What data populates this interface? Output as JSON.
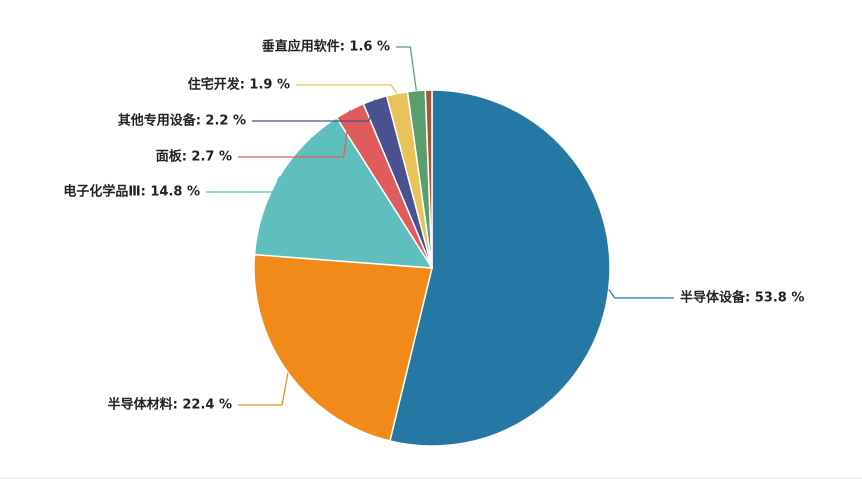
{
  "chart_data": {
    "type": "pie",
    "value_labels": [
      "半导体设备: 53.8 %",
      "半导体材料: 22.4 %",
      "电子化学品Ⅲ: 14.8 %",
      "面板: 2.7 %",
      "其他专用设备: 2.2 %",
      "住宅开发: 1.9 %",
      "垂直应用软件: 1.6 %",
      null
    ],
    "values": [
      53.8,
      22.4,
      14.8,
      2.7,
      2.2,
      1.9,
      1.6,
      0.6
    ],
    "colors": [
      "#2577a4",
      "#f28a1a",
      "#5fbfbf",
      "#e05c5c",
      "#4a5190",
      "#e8c35a",
      "#5a9e6e",
      "#a0583a"
    ]
  }
}
